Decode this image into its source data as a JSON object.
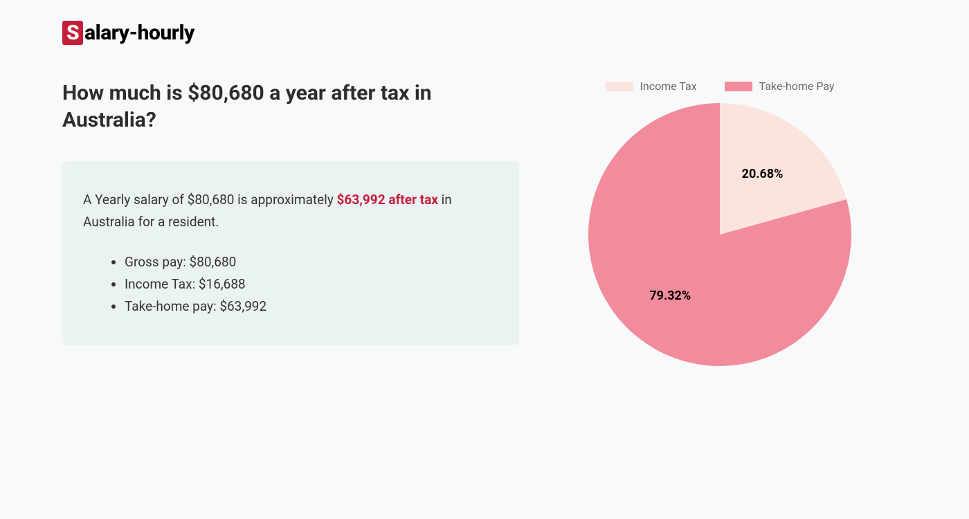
{
  "logo": {
    "s_char": "S",
    "rest": "alary-hourly"
  },
  "title": "How much is $80,680 a year after tax in Australia?",
  "summary": {
    "text_before": "A Yearly salary of $80,680 is approximately ",
    "highlight": "$63,992 after tax",
    "text_after": " in Australia for a resident.",
    "bullets": [
      "Gross pay: $80,680",
      "Income Tax: $16,688",
      "Take-home pay: $63,992"
    ]
  },
  "chart": {
    "type": "pie",
    "background_color": "#f7f9fa",
    "diameter": 380,
    "slices": [
      {
        "label": "Income Tax",
        "value": 20.68,
        "display": "20.68%",
        "color": "#fce4de"
      },
      {
        "label": "Take-home Pay",
        "value": 79.32,
        "display": "79.32%",
        "color": "#f28b9b"
      }
    ],
    "legend": {
      "position": "top",
      "swatch_width": 40,
      "swatch_height": 14,
      "font_size": 16,
      "text_color": "#666666"
    },
    "slice_label": {
      "font_size": 18,
      "font_weight": 700,
      "color": "#000000"
    },
    "start_angle_deg": 0
  },
  "colors": {
    "page_bg": "#f7f9fa",
    "summary_bg": "#eaf2f2",
    "accent": "#c41e3a",
    "text_primary": "#2d2d2d",
    "text_body": "#333333"
  }
}
